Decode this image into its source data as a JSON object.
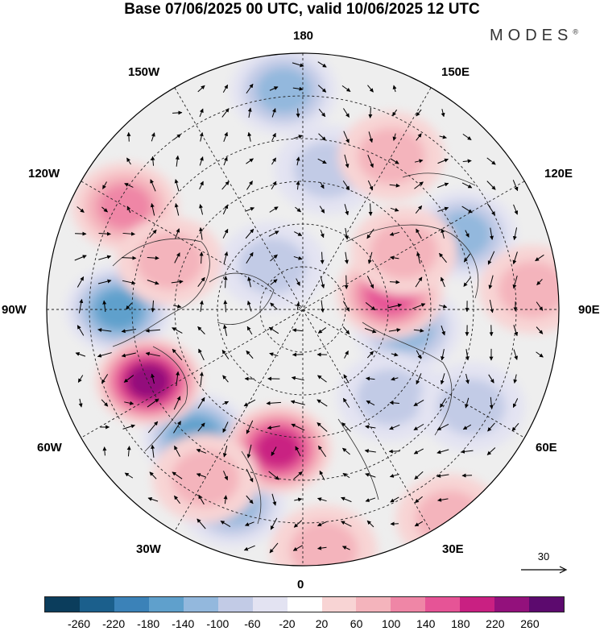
{
  "title": "Base 07/06/2025 00 UTC, valid 10/06/2025 12 UTC",
  "brand": "MODES",
  "brand_mark": "®",
  "longitude_labels": {
    "top": "180",
    "bottom": "0",
    "left": "90W",
    "right": "90E",
    "upper_left_1": "150W",
    "upper_left_2": "120W",
    "upper_right_1": "150E",
    "upper_right_2": "120E",
    "lower_left_1": "60W",
    "lower_left_2": "30W",
    "lower_right_1": "60E",
    "lower_right_2": "30E"
  },
  "wind_scale": {
    "label": "30",
    "icon": "arrow-right-icon"
  },
  "colorbar": {
    "colors": [
      "#0b3d5c",
      "#1b5f8c",
      "#3b82b8",
      "#5fa0cc",
      "#93b8dd",
      "#c2cbe6",
      "#e3e3f2",
      "#ffffff",
      "#f8d4d4",
      "#f4b4bc",
      "#ef86a6",
      "#e65496",
      "#c92082",
      "#93117c",
      "#5c0a6e"
    ],
    "ticks": [
      "-260",
      "-220",
      "-180",
      "-140",
      "-100",
      "-60",
      "-20",
      "20",
      "60",
      "100",
      "140",
      "180",
      "220",
      "260"
    ]
  },
  "anomaly_field": {
    "lows": [
      {
        "lon": -90,
        "colat": 52,
        "value": -140
      },
      {
        "lon": -40,
        "colat": 47,
        "value": -120
      },
      {
        "lon": -20,
        "colat": 58,
        "value": -110
      },
      {
        "lon": 115,
        "colat": 50,
        "value": -110
      },
      {
        "lon": 80,
        "colat": 30,
        "value": -100
      },
      {
        "lon": -175,
        "colat": 62,
        "value": -80
      },
      {
        "lon": 170,
        "colat": 40,
        "value": -60
      },
      {
        "lon": 45,
        "colat": 35,
        "value": -70
      },
      {
        "lon": 60,
        "colat": 55,
        "value": -50
      },
      {
        "lon": -145,
        "colat": 15,
        "value": -50
      }
    ],
    "highs": [
      {
        "lon": -65,
        "colat": 48,
        "value": 200
      },
      {
        "lon": -10,
        "colat": 40,
        "value": 160
      },
      {
        "lon": 100,
        "colat": 25,
        "value": 130
      },
      {
        "lon": 120,
        "colat": 33,
        "value": 60
      },
      {
        "lon": -120,
        "colat": 58,
        "value": 90
      },
      {
        "lon": -110,
        "colat": 40,
        "value": 70
      },
      {
        "lon": 150,
        "colat": 50,
        "value": 70
      },
      {
        "lon": 95,
        "colat": 65,
        "value": 60
      },
      {
        "lon": -30,
        "colat": 55,
        "value": 60
      },
      {
        "lon": 5,
        "colat": 68,
        "value": 60
      },
      {
        "lon": 35,
        "colat": 72,
        "value": 40
      }
    ]
  }
}
